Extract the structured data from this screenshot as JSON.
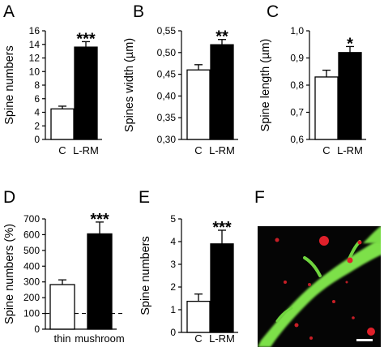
{
  "chart_data": [
    {
      "panel": "A",
      "type": "bar",
      "ylabel": "Spine numbers",
      "categories": [
        "C",
        "L-RM"
      ],
      "values": [
        4.5,
        13.6
      ],
      "errors": [
        0.4,
        0.8
      ],
      "ylim": [
        0,
        16
      ],
      "yticks": [
        "0",
        "2",
        "4",
        "6",
        "8",
        "10",
        "12",
        "14",
        "16"
      ],
      "significance": "***",
      "colors": [
        "#ffffff",
        "#000000"
      ]
    },
    {
      "panel": "B",
      "type": "bar",
      "ylabel": "Spines width (µm)",
      "categories": [
        "C",
        "L-RM"
      ],
      "values": [
        0.46,
        0.518
      ],
      "errors": [
        0.012,
        0.012
      ],
      "ylim": [
        0.3,
        0.55
      ],
      "yticks": [
        "0,30",
        "0,35",
        "0,40",
        "0,45",
        "0,50",
        "0,55"
      ],
      "significance": "**",
      "colors": [
        "#ffffff",
        "#000000"
      ]
    },
    {
      "panel": "C",
      "type": "bar",
      "ylabel": "Spine length (µm)",
      "categories": [
        "C",
        "L-RM"
      ],
      "values": [
        0.83,
        0.92
      ],
      "errors": [
        0.025,
        0.022
      ],
      "ylim": [
        0.6,
        1.0
      ],
      "yticks": [
        "0,6",
        "0,7",
        "0,8",
        "0,9",
        "1,0"
      ],
      "significance": "*",
      "colors": [
        "#ffffff",
        "#000000"
      ]
    },
    {
      "panel": "D",
      "type": "bar",
      "ylabel": "Spine numbers (%)",
      "categories": [
        "thin",
        "mushroom"
      ],
      "values": [
        283,
        605
      ],
      "errors": [
        30,
        75
      ],
      "ylim": [
        0,
        700
      ],
      "yticks": [
        "0",
        "100",
        "200",
        "300",
        "400",
        "500",
        "600",
        "700"
      ],
      "significance": "***",
      "reference_line": 100,
      "colors": [
        "#ffffff",
        "#000000"
      ]
    },
    {
      "panel": "E",
      "type": "bar",
      "ylabel": "Spine numbers",
      "categories": [
        "C",
        "L-RM"
      ],
      "values": [
        1.37,
        3.9
      ],
      "errors": [
        0.32,
        0.6
      ],
      "ylim": [
        0,
        5
      ],
      "yticks": [
        "0",
        "1",
        "2",
        "3",
        "4",
        "5"
      ],
      "significance": "***",
      "colors": [
        "#ffffff",
        "#000000"
      ]
    }
  ],
  "image_panel": {
    "panel": "F"
  }
}
